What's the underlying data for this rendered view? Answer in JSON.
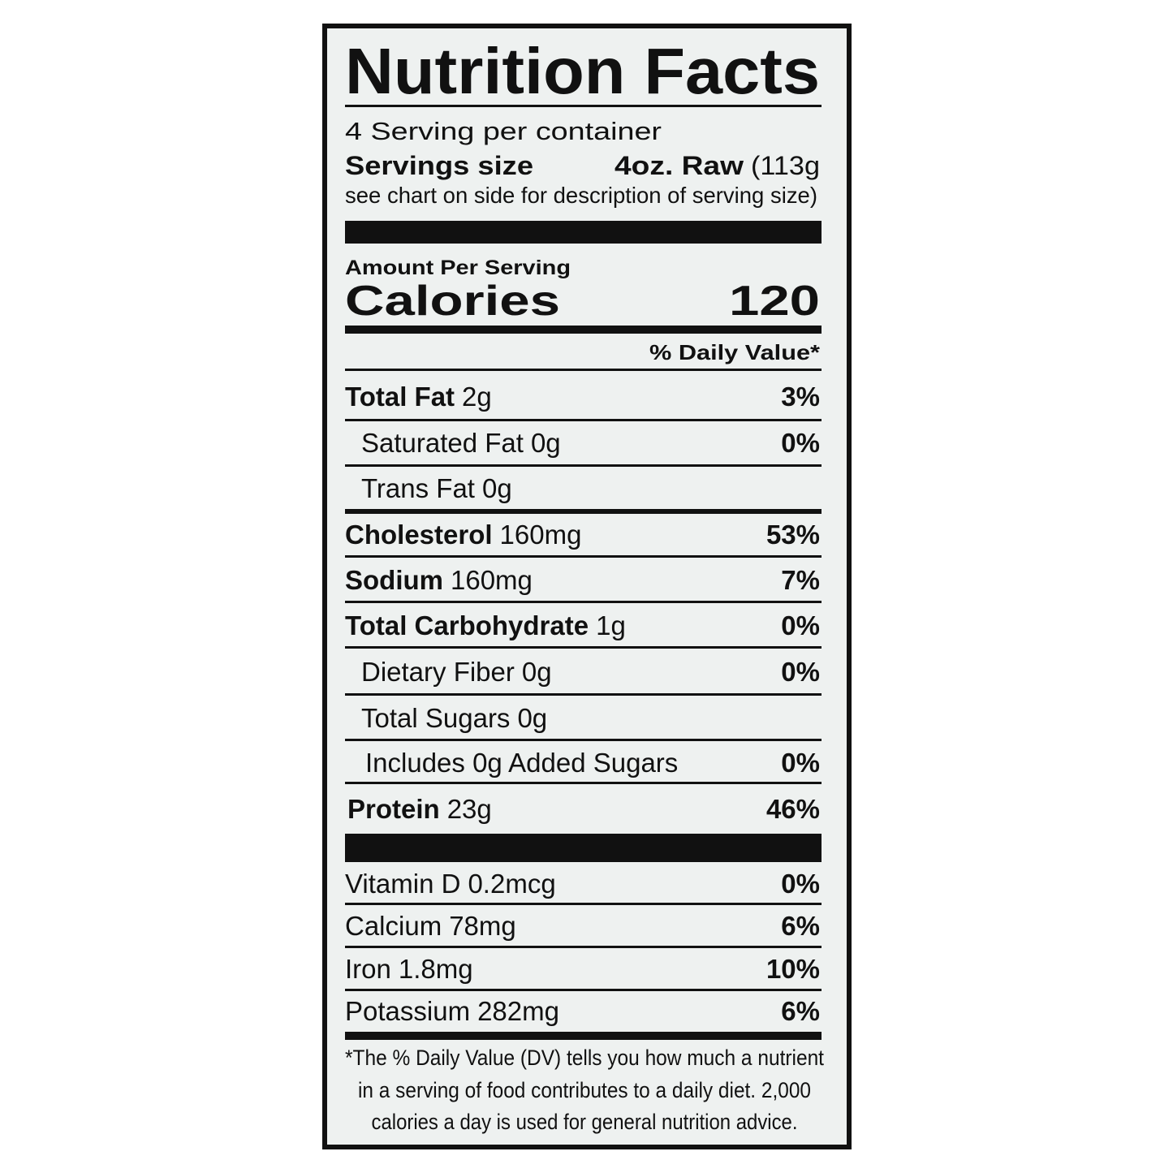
{
  "header": {
    "title": "Nutrition Facts",
    "servings_per_container": "4 Serving per container",
    "serving_size_label": "Servings size",
    "serving_size_value": "4oz. Raw",
    "serving_size_grams": "(113g",
    "serving_note": "see chart on side for description of serving size)"
  },
  "calories": {
    "label": "Amount Per Serving",
    "name": "Calories",
    "value": 120
  },
  "daily_value_header": "% Daily Value*",
  "nutrients": [
    {
      "name": "Total Fat",
      "amount": "2g",
      "dv": "3%"
    },
    {
      "name": "Saturated Fat",
      "amount": "0g",
      "dv": "0%"
    },
    {
      "name": "Trans Fat",
      "amount": "0g"
    },
    {
      "name": "Cholesterol",
      "amount": "160mg",
      "dv": "53%"
    },
    {
      "name": "Sodium",
      "amount": "160mg",
      "dv": "7%"
    },
    {
      "name": "Total Carbohydrate",
      "amount": "1g",
      "dv": "0%"
    },
    {
      "name": "Dietary Fiber",
      "amount": "0g",
      "dv": "0%"
    },
    {
      "name": "Total Sugars",
      "amount": "0g"
    },
    {
      "name": "Includes 0g Added Sugars",
      "dv": "0%"
    },
    {
      "name": "Protein",
      "amount": "23g",
      "dv": "46%"
    }
  ],
  "vitamins": [
    {
      "name": "Vitamin D",
      "amount": "0.2mcg",
      "dv": "0%"
    },
    {
      "name": "Calcium",
      "amount": "78mg",
      "dv": "6%"
    },
    {
      "name": "Iron",
      "amount": "1.8mg",
      "dv": "10%"
    },
    {
      "name": "Potassium",
      "amount": "282mg",
      "dv": "6%"
    }
  ],
  "footnote": [
    "*The % Daily Value (DV) tells you how much a nutrient",
    "in a serving of food contributes to a daily diet. 2,000",
    "calories a day is used for general nutrition advice."
  ]
}
